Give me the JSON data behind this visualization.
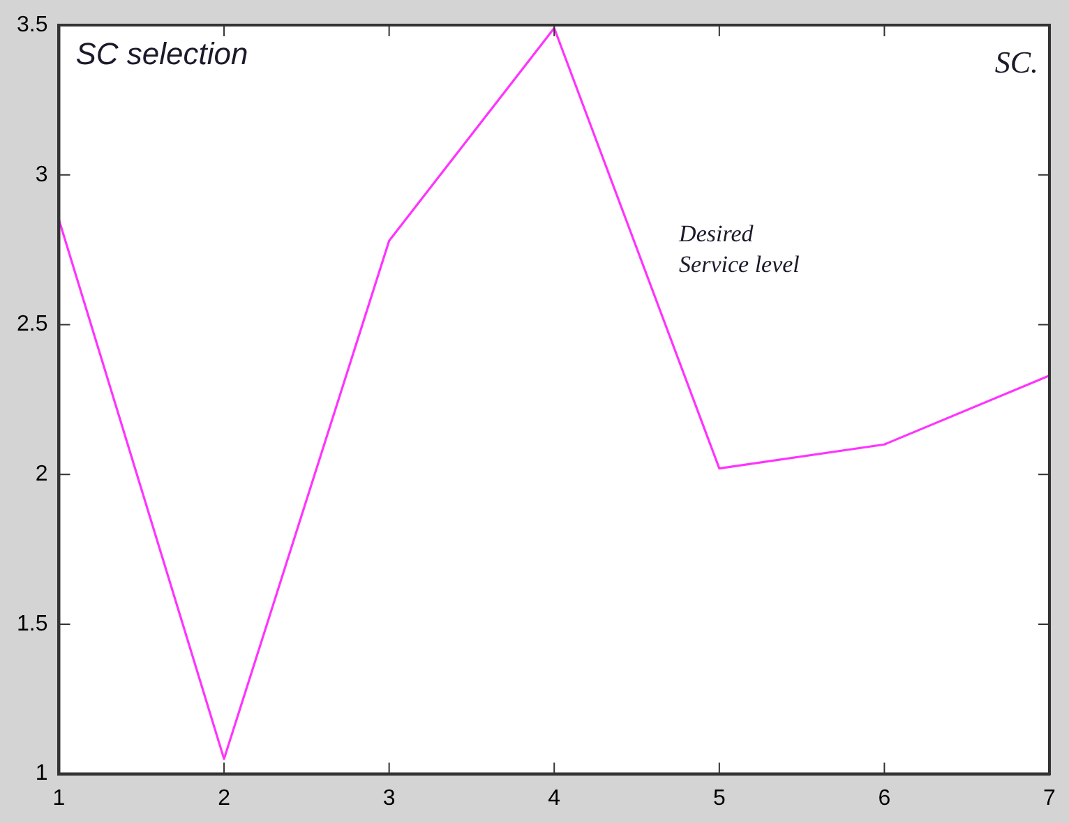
{
  "chart_data": {
    "type": "line",
    "x": [
      1,
      2,
      3,
      4,
      5,
      6,
      7
    ],
    "series": [
      {
        "color": "#ff33ff",
        "values": [
          2.85,
          1.05,
          2.78,
          3.49,
          2.02,
          2.1,
          2.33
        ]
      }
    ],
    "xlim": [
      1,
      7
    ],
    "xticks": [
      1,
      2,
      3,
      4,
      5,
      6,
      7
    ],
    "ylim": [
      1,
      3.5
    ],
    "yticks": [
      1,
      1.5,
      2,
      2.5,
      3,
      3.5
    ],
    "grid": false,
    "legend": false,
    "marker": "none",
    "line_style": "solid",
    "annotations": [
      "SC selection",
      "SC.",
      "Desired\nService level"
    ]
  }
}
